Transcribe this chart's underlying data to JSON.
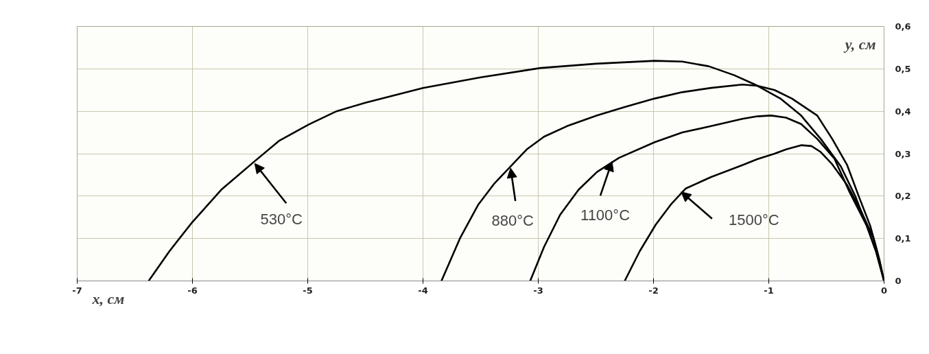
{
  "chart_data": {
    "type": "line",
    "xlabel": "x, см",
    "ylabel": "y, см",
    "xlim": [
      -7,
      0
    ],
    "ylim": [
      0,
      0.6
    ],
    "xticks": [
      -7,
      -6,
      -5,
      -4,
      -3,
      -2,
      -1,
      0
    ],
    "yticks": [
      0,
      {
        "value": 0.1,
        "label": "0,1"
      },
      {
        "value": 0.2,
        "label": "0,2"
      },
      {
        "value": 0.3,
        "label": "0,3"
      },
      {
        "value": 0.4,
        "label": "0,4"
      },
      {
        "value": 0.5,
        "label": "0,5"
      },
      {
        "value": 0.6,
        "label": "0,6"
      }
    ],
    "grid": true,
    "line_style": "solid",
    "marker": "none",
    "series": [
      {
        "color": "#000000",
        "x": [
          -6.38,
          -6.2,
          -6.0,
          -5.75,
          -5.47,
          -5.25,
          -4.99,
          -4.75,
          -4.5,
          -4.0,
          -3.5,
          -2.98,
          -2.5,
          -1.99,
          -1.75,
          -1.52,
          -1.3,
          -1.12,
          -0.9,
          -0.72,
          -0.55,
          -0.375,
          -0.25,
          -0.15,
          -0.07,
          0
        ],
        "values": [
          0,
          0.07,
          0.139,
          0.215,
          0.28,
          0.33,
          0.369,
          0.4,
          0.42,
          0.455,
          0.48,
          0.502,
          0.512,
          0.519,
          0.517,
          0.506,
          0.485,
          0.463,
          0.43,
          0.39,
          0.335,
          0.27,
          0.2,
          0.13,
          0.07,
          0
        ]
      },
      {
        "color": "#000000",
        "x": [
          -3.84,
          -3.68,
          -3.52,
          -3.38,
          -3.24,
          -3.1,
          -2.95,
          -2.75,
          -2.49,
          -2.25,
          -1.99,
          -1.75,
          -1.5,
          -1.23,
          -1.1,
          -0.95,
          -0.8,
          -0.58,
          -0.45,
          -0.32,
          -0.22,
          -0.12,
          -0.06,
          0
        ],
        "values": [
          0,
          0.1,
          0.18,
          0.23,
          0.27,
          0.31,
          0.34,
          0.365,
          0.39,
          0.41,
          0.43,
          0.445,
          0.455,
          0.463,
          0.46,
          0.45,
          0.43,
          0.39,
          0.335,
          0.273,
          0.2,
          0.13,
          0.07,
          0
        ]
      },
      {
        "color": "#000000",
        "x": [
          -3.07,
          -2.95,
          -2.81,
          -2.65,
          -2.49,
          -2.3,
          -1.99,
          -1.75,
          -1.5,
          -1.23,
          -1.1,
          -0.98,
          -0.85,
          -0.72,
          -0.58,
          -0.43,
          -0.3,
          -0.15,
          -0.07,
          0
        ],
        "values": [
          0,
          0.08,
          0.156,
          0.215,
          0.257,
          0.29,
          0.327,
          0.35,
          0.365,
          0.382,
          0.388,
          0.39,
          0.385,
          0.37,
          0.335,
          0.288,
          0.21,
          0.13,
          0.07,
          0
        ]
      },
      {
        "color": "#000000",
        "x": [
          -2.25,
          -2.12,
          -1.98,
          -1.85,
          -1.72,
          -1.5,
          -1.23,
          -1.1,
          -0.95,
          -0.85,
          -0.72,
          -0.63,
          -0.55,
          -0.45,
          -0.32,
          -0.2,
          -0.09,
          -0.04,
          0
        ],
        "values": [
          0,
          0.07,
          0.133,
          0.18,
          0.218,
          0.245,
          0.273,
          0.287,
          0.3,
          0.31,
          0.32,
          0.318,
          0.304,
          0.275,
          0.226,
          0.165,
          0.1,
          0.05,
          0
        ]
      }
    ],
    "annotations": [
      {
        "text": "530°C",
        "x": -5.46,
        "y": 0.277
      },
      {
        "text": "880°C",
        "x": -3.24,
        "y": 0.266
      },
      {
        "text": "1100°C",
        "x": -2.36,
        "y": 0.282
      },
      {
        "text": "1500°C",
        "x": -1.76,
        "y": 0.21
      }
    ]
  }
}
